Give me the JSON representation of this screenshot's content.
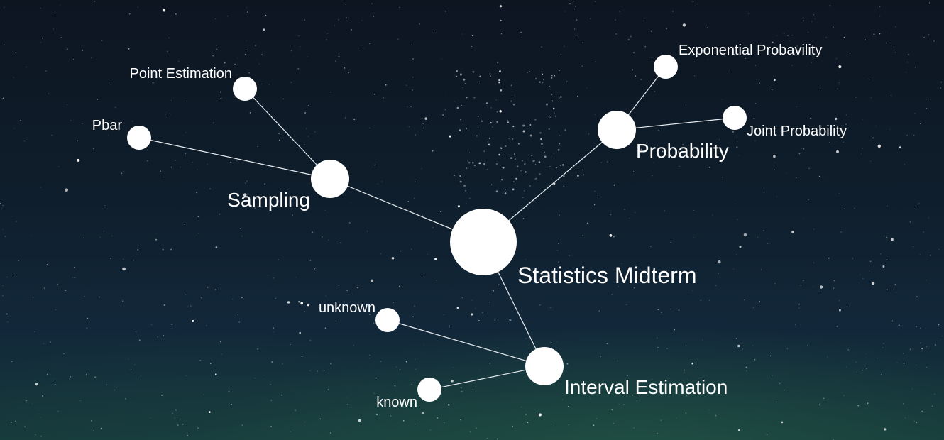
{
  "mindmap": {
    "root": {
      "id": "statistics-midterm",
      "label": "Statistics Midterm",
      "children": [
        {
          "id": "sampling",
          "label": "Sampling",
          "children": [
            {
              "id": "point-estimation",
              "label": "Point Estimation"
            },
            {
              "id": "pbar",
              "label": "Pbar"
            }
          ]
        },
        {
          "id": "probability",
          "label": "Probability",
          "children": [
            {
              "id": "exponential-probavility",
              "label": "Exponential Probavility"
            },
            {
              "id": "joint-probability",
              "label": "Joint Probability"
            }
          ]
        },
        {
          "id": "interval-estimation",
          "label": "Interval Estimation",
          "children": [
            {
              "id": "unknown",
              "label": "unknown"
            },
            {
              "id": "known",
              "label": "known"
            }
          ]
        }
      ]
    }
  },
  "colors": {
    "node": "#ffffff",
    "edge": "#e8eef2",
    "background_top": "#0d1521",
    "background_bottom": "#163a3a"
  }
}
